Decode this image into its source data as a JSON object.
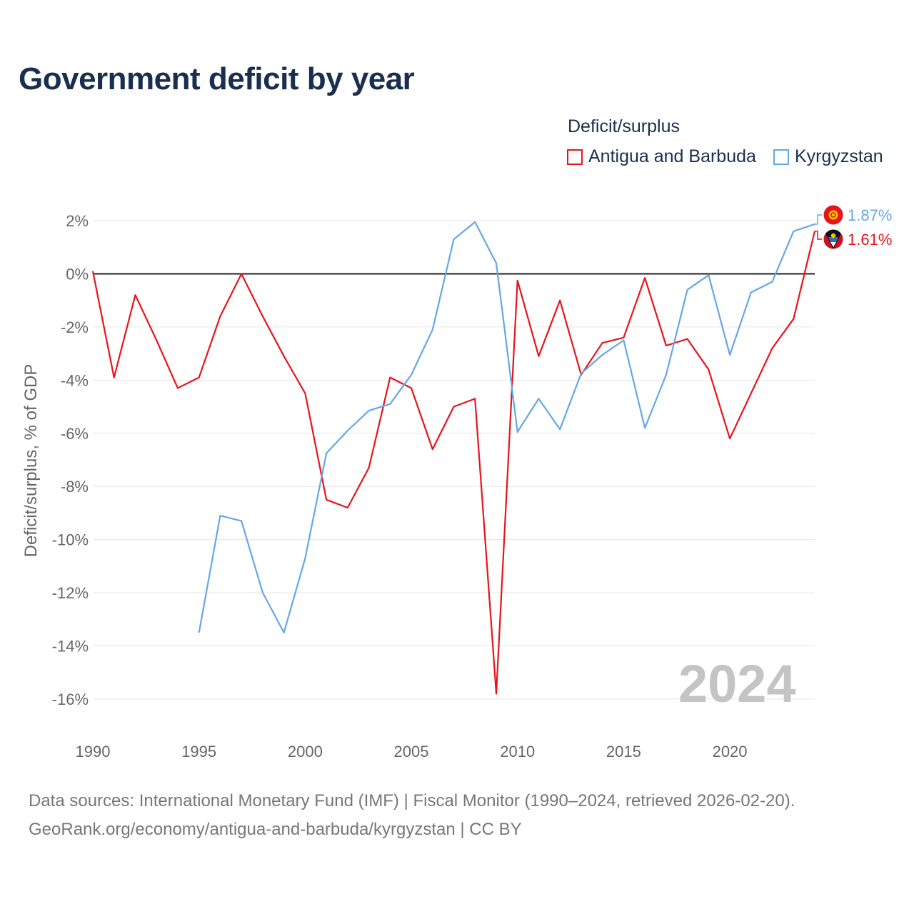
{
  "title": "Government deficit by year",
  "legend": {
    "title": "Deficit/surplus",
    "items": [
      "Antigua and Barbuda",
      "Kyrgyzstan"
    ]
  },
  "colors": {
    "antigua": "#e8141c",
    "kyrgyzstan": "#66a7e6",
    "axis": "#222222",
    "grid": "#e6e6e6",
    "year_mark": "#c4c4c4"
  },
  "footer": {
    "line1": "Data sources: International Monetary Fund (IMF) | Fiscal Monitor (1990–2024, retrieved 2026-02-20).",
    "line2": "GeoRank.org/economy/antigua-and-barbuda/kyrgyzstan | CC BY"
  },
  "chart_data": {
    "type": "line",
    "ylabel": "Deficit/surplus, % of GDP",
    "xlim": [
      1990,
      2024
    ],
    "ylim": [
      -17.4,
      2.7
    ],
    "yticks": [
      2,
      0,
      -2,
      -4,
      -6,
      -8,
      -10,
      -12,
      -14,
      -16
    ],
    "ytick_labels": [
      "2%",
      "0%",
      "-2%",
      "-4%",
      "-6%",
      "-8%",
      "-10%",
      "-12%",
      "-14%",
      "-16%"
    ],
    "xticks": [
      1990,
      1995,
      2000,
      2005,
      2010,
      2015,
      2020
    ],
    "xtick_labels": [
      "1990",
      "1995",
      "2000",
      "2005",
      "2010",
      "2015",
      "2020"
    ],
    "year_watermark": "2024",
    "series": [
      {
        "name": "Antigua and Barbuda",
        "color": "#e8141c",
        "end_label": "1.61%",
        "flag_icon": "antigua-flag-icon",
        "points": [
          [
            1990,
            0.1
          ],
          [
            1991,
            -3.9
          ],
          [
            1992,
            -0.8
          ],
          [
            1993,
            -2.5
          ],
          [
            1994,
            -4.3
          ],
          [
            1995,
            -3.9
          ],
          [
            1996,
            -1.6
          ],
          [
            1997,
            0.0
          ],
          [
            1998,
            -1.6
          ],
          [
            1999,
            -3.1
          ],
          [
            2000,
            -4.5
          ],
          [
            2001,
            -8.5
          ],
          [
            2002,
            -8.8
          ],
          [
            2003,
            -7.3
          ],
          [
            2004,
            -3.9
          ],
          [
            2005,
            -4.3
          ],
          [
            2006,
            -6.6
          ],
          [
            2007,
            -5.0
          ],
          [
            2008,
            -4.7
          ],
          [
            2009,
            -15.8
          ],
          [
            2010,
            -0.25
          ],
          [
            2011,
            -3.1
          ],
          [
            2012,
            -1.0
          ],
          [
            2013,
            -3.8
          ],
          [
            2014,
            -2.6
          ],
          [
            2015,
            -2.4
          ],
          [
            2016,
            -0.15
          ],
          [
            2017,
            -2.7
          ],
          [
            2018,
            -2.45
          ],
          [
            2019,
            -3.6
          ],
          [
            2020,
            -6.2
          ],
          [
            2021,
            -4.5
          ],
          [
            2022,
            -2.8
          ],
          [
            2023,
            -1.7
          ],
          [
            2024,
            1.61
          ]
        ]
      },
      {
        "name": "Kyrgyzstan",
        "color": "#66a7e6",
        "end_label": "1.87%",
        "flag_icon": "kyrgyzstan-flag-icon",
        "points": [
          [
            1995,
            -13.5
          ],
          [
            1996,
            -9.1
          ],
          [
            1997,
            -9.3
          ],
          [
            1998,
            -12.0
          ],
          [
            1999,
            -13.5
          ],
          [
            2000,
            -10.7
          ],
          [
            2001,
            -6.75
          ],
          [
            2002,
            -5.9
          ],
          [
            2003,
            -5.15
          ],
          [
            2004,
            -4.9
          ],
          [
            2005,
            -3.8
          ],
          [
            2006,
            -2.1
          ],
          [
            2007,
            1.3
          ],
          [
            2008,
            1.95
          ],
          [
            2009,
            0.4
          ],
          [
            2010,
            -5.95
          ],
          [
            2011,
            -4.7
          ],
          [
            2012,
            -5.85
          ],
          [
            2013,
            -3.75
          ],
          [
            2014,
            -3.05
          ],
          [
            2015,
            -2.5
          ],
          [
            2016,
            -5.8
          ],
          [
            2017,
            -3.8
          ],
          [
            2018,
            -0.6
          ],
          [
            2019,
            -0.05
          ],
          [
            2020,
            -3.05
          ],
          [
            2021,
            -0.7
          ],
          [
            2022,
            -0.3
          ],
          [
            2023,
            1.6
          ],
          [
            2024,
            1.87
          ]
        ]
      }
    ]
  }
}
